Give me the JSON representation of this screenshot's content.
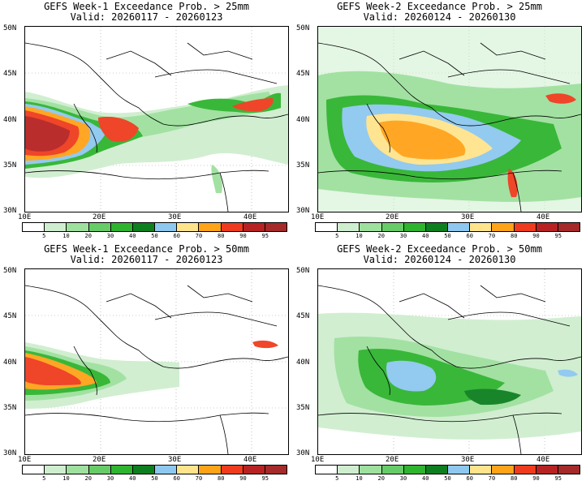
{
  "legend": {
    "ticks": [
      "5",
      "10",
      "20",
      "30",
      "40",
      "50",
      "60",
      "70",
      "80",
      "90",
      "95"
    ],
    "colors": [
      "#ffffff",
      "#cfeecf",
      "#9ee09e",
      "#67cc67",
      "#2fb42f",
      "#0d7f1f",
      "#8ec8f0",
      "#ffe48c",
      "#ffa319",
      "#ef3c1e",
      "#b62322",
      "#a52a2a"
    ]
  },
  "axes": {
    "lat_labels": [
      "50N",
      "45N",
      "40N",
      "35N",
      "30N"
    ],
    "lon_labels": [
      "10E",
      "20E",
      "30E",
      "40E"
    ]
  },
  "panels": [
    {
      "title": "GEFS Week-1 Exceedance Prob. > 25mm",
      "valid": "Valid: 20260117 - 20260123"
    },
    {
      "title": "GEFS Week-2 Exceedance Prob. > 25mm",
      "valid": "Valid: 20260124 - 20260130"
    },
    {
      "title": "GEFS Week-1 Exceedance Prob. > 50mm",
      "valid": "Valid: 20260117 - 20260123"
    },
    {
      "title": "GEFS Week-2 Exceedance Prob. > 50mm",
      "valid": "Valid: 20260124 - 20260130"
    }
  ]
}
